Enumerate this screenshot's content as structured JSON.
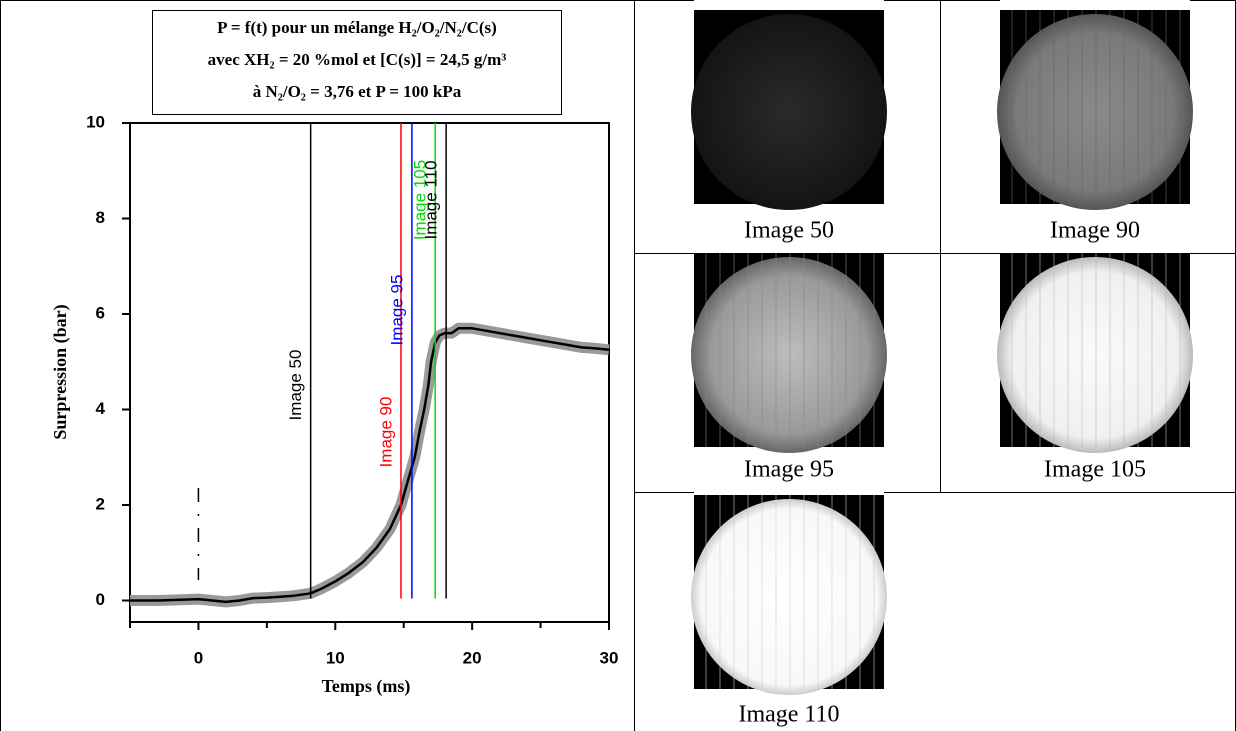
{
  "chart_data": {
    "type": "line",
    "title": [
      "P = f(t) pour un mélange H₂/O₂/N₂/C(s)",
      "avec XH₂ = 20 %mol et [C(s)] = 24,5 g/m³",
      "à N₂/O₂ = 3,76 et P = 100 kPa"
    ],
    "x_label": "Temps (ms)",
    "y_label": "Surpression (bar)",
    "xlim": [
      -5,
      30
    ],
    "ylim": [
      -0.45,
      10
    ],
    "xticks": [
      0,
      10,
      20,
      30
    ],
    "xminor_ticks": [
      -5,
      5,
      15,
      25
    ],
    "yticks": [
      0,
      2,
      4,
      6,
      8,
      10
    ],
    "ignition_time": 0,
    "series": [
      {
        "color": "#000000",
        "x": [
          -5,
          -3,
          -1,
          0,
          1,
          2,
          3,
          4,
          5,
          6,
          7,
          8.2,
          9,
          10,
          11,
          12,
          13,
          14,
          14.8,
          15.3,
          15.8,
          16.2,
          16.5,
          16.8,
          17,
          17.3,
          17.6,
          18,
          18.5,
          19,
          20,
          21,
          22,
          23,
          24,
          25,
          26,
          27,
          28,
          29,
          30
        ],
        "values": [
          0,
          0,
          0.02,
          0.03,
          0,
          -0.03,
          0,
          0.05,
          0.06,
          0.08,
          0.1,
          0.15,
          0.25,
          0.4,
          0.58,
          0.8,
          1.1,
          1.5,
          2.0,
          2.5,
          3.0,
          3.6,
          4.0,
          4.5,
          5.0,
          5.4,
          5.55,
          5.6,
          5.6,
          5.7,
          5.7,
          5.65,
          5.6,
          5.55,
          5.5,
          5.45,
          5.4,
          5.35,
          5.3,
          5.28,
          5.25
        ]
      }
    ],
    "annotations": [
      {
        "x": 8.2,
        "label": "Image 50",
        "color": "#000000"
      },
      {
        "x": 14.8,
        "label": "Image 90",
        "color": "#ff0000"
      },
      {
        "x": 15.6,
        "label": "Image 95",
        "color": "#0000ff"
      },
      {
        "x": 17.3,
        "label": "Image 105",
        "color": "#00dd00"
      },
      {
        "x": 18.1,
        "label": "Image 110",
        "color": "#000000"
      }
    ]
  },
  "images": [
    {
      "caption": "Image 50"
    },
    {
      "caption": "Image 90"
    },
    {
      "caption": "Image 95"
    },
    {
      "caption": "Image 105"
    },
    {
      "caption": "Image 110"
    }
  ]
}
